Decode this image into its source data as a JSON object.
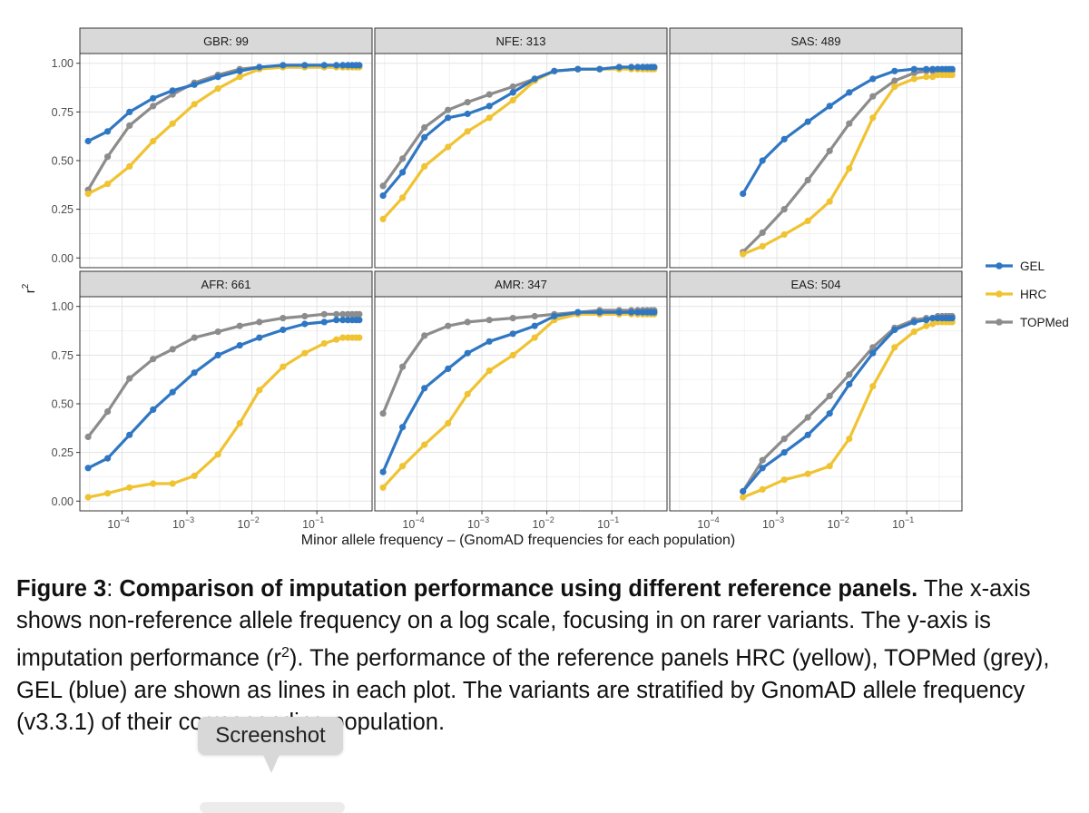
{
  "figure": {
    "y_axis_label": "r",
    "y_axis_label_sup": "2",
    "x_axis_label": "Minor allele frequency – (GnomAD frequencies for each population)",
    "y_ticks": [
      "0.00",
      "0.25",
      "0.50",
      "0.75",
      "1.00"
    ],
    "x_ticks": [
      {
        "base": "10",
        "exp": "−4",
        "value": -4
      },
      {
        "base": "10",
        "exp": "−3",
        "value": -3
      },
      {
        "base": "10",
        "exp": "−2",
        "value": -2
      },
      {
        "base": "10",
        "exp": "−1",
        "value": -1
      }
    ],
    "legend": [
      {
        "name": "GEL",
        "color": "#2f77c3"
      },
      {
        "name": "HRC",
        "color": "#f0c332"
      },
      {
        "name": "TOPMed",
        "color": "#8c8c8c"
      }
    ]
  },
  "chart_data": [
    {
      "type": "line",
      "title": "GBR: 99",
      "x_scale": "log10",
      "ylim": [
        0,
        1
      ],
      "xlabel": "Minor allele frequency – (GnomAD frequencies for each population)",
      "ylabel": "r2",
      "series": [
        {
          "name": "GEL",
          "x": [
            3e-05,
            6e-05,
            0.00013,
            0.0003,
            0.0006,
            0.0013,
            0.003,
            0.0065,
            0.013,
            0.03,
            0.065,
            0.13,
            0.2,
            0.25,
            0.3,
            0.35,
            0.4,
            0.45
          ],
          "y": [
            0.6,
            0.65,
            0.75,
            0.82,
            0.86,
            0.89,
            0.93,
            0.96,
            0.98,
            0.99,
            0.99,
            0.99,
            0.99,
            0.99,
            0.99,
            0.99,
            0.99,
            0.99
          ]
        },
        {
          "name": "HRC",
          "x": [
            3e-05,
            6e-05,
            0.00013,
            0.0003,
            0.0006,
            0.0013,
            0.003,
            0.0065,
            0.013,
            0.03,
            0.065,
            0.13,
            0.2,
            0.25,
            0.3,
            0.35,
            0.4,
            0.45
          ],
          "y": [
            0.33,
            0.38,
            0.47,
            0.6,
            0.69,
            0.79,
            0.87,
            0.93,
            0.97,
            0.98,
            0.98,
            0.98,
            0.98,
            0.98,
            0.98,
            0.98,
            0.98,
            0.98
          ]
        },
        {
          "name": "TOPMed",
          "x": [
            3e-05,
            6e-05,
            0.00013,
            0.0003,
            0.0006,
            0.0013,
            0.003,
            0.0065,
            0.013,
            0.03,
            0.065,
            0.13,
            0.2,
            0.25,
            0.3,
            0.35,
            0.4,
            0.45
          ],
          "y": [
            0.35,
            0.52,
            0.68,
            0.78,
            0.84,
            0.9,
            0.94,
            0.97,
            0.98,
            0.98,
            0.98,
            0.98,
            0.98,
            0.98,
            0.98,
            0.98,
            0.98,
            0.98
          ]
        }
      ]
    },
    {
      "type": "line",
      "title": "NFE: 313",
      "x_scale": "log10",
      "ylim": [
        0,
        1
      ],
      "series": [
        {
          "name": "GEL",
          "x": [
            3e-05,
            6e-05,
            0.00013,
            0.0003,
            0.0006,
            0.0013,
            0.003,
            0.0065,
            0.013,
            0.03,
            0.065,
            0.13,
            0.2,
            0.25,
            0.3,
            0.35,
            0.4,
            0.45
          ],
          "y": [
            0.32,
            0.44,
            0.62,
            0.72,
            0.74,
            0.78,
            0.85,
            0.92,
            0.96,
            0.97,
            0.97,
            0.98,
            0.98,
            0.98,
            0.98,
            0.98,
            0.98,
            0.98
          ]
        },
        {
          "name": "HRC",
          "x": [
            3e-05,
            6e-05,
            0.00013,
            0.0003,
            0.0006,
            0.0013,
            0.003,
            0.0065,
            0.013,
            0.03,
            0.065,
            0.13,
            0.2,
            0.25,
            0.3,
            0.35,
            0.4,
            0.45
          ],
          "y": [
            0.2,
            0.31,
            0.47,
            0.57,
            0.65,
            0.72,
            0.81,
            0.91,
            0.96,
            0.97,
            0.97,
            0.97,
            0.97,
            0.97,
            0.97,
            0.97,
            0.97,
            0.97
          ]
        },
        {
          "name": "TOPMed",
          "x": [
            3e-05,
            6e-05,
            0.00013,
            0.0003,
            0.0006,
            0.0013,
            0.003,
            0.0065,
            0.013,
            0.03,
            0.065,
            0.13,
            0.2,
            0.25,
            0.3,
            0.35,
            0.4,
            0.45
          ],
          "y": [
            0.37,
            0.51,
            0.67,
            0.76,
            0.8,
            0.84,
            0.88,
            0.92,
            0.96,
            0.97,
            0.97,
            0.98,
            0.98,
            0.98,
            0.98,
            0.98,
            0.98,
            0.98
          ]
        }
      ]
    },
    {
      "type": "line",
      "title": "SAS: 489",
      "x_scale": "log10",
      "ylim": [
        0,
        1
      ],
      "series": [
        {
          "name": "GEL",
          "x": [
            0.0003,
            0.0006,
            0.0013,
            0.003,
            0.0065,
            0.013,
            0.03,
            0.065,
            0.13,
            0.2,
            0.25,
            0.3,
            0.35,
            0.4,
            0.45,
            0.5
          ],
          "y": [
            0.33,
            0.5,
            0.61,
            0.7,
            0.78,
            0.85,
            0.92,
            0.96,
            0.97,
            0.97,
            0.97,
            0.97,
            0.97,
            0.97,
            0.97,
            0.97
          ]
        },
        {
          "name": "HRC",
          "x": [
            0.0003,
            0.0006,
            0.0013,
            0.003,
            0.0065,
            0.013,
            0.03,
            0.065,
            0.13,
            0.2,
            0.25,
            0.3,
            0.35,
            0.4,
            0.45,
            0.5
          ],
          "y": [
            0.02,
            0.06,
            0.12,
            0.19,
            0.29,
            0.46,
            0.72,
            0.88,
            0.92,
            0.93,
            0.93,
            0.94,
            0.94,
            0.94,
            0.94,
            0.94
          ]
        },
        {
          "name": "TOPMed",
          "x": [
            0.0003,
            0.0006,
            0.0013,
            0.003,
            0.0065,
            0.013,
            0.03,
            0.065,
            0.13,
            0.2,
            0.25,
            0.3,
            0.35,
            0.4,
            0.45,
            0.5
          ],
          "y": [
            0.03,
            0.13,
            0.25,
            0.4,
            0.55,
            0.69,
            0.83,
            0.91,
            0.95,
            0.96,
            0.96,
            0.96,
            0.96,
            0.96,
            0.96,
            0.96
          ]
        }
      ]
    },
    {
      "type": "line",
      "title": "AFR: 661",
      "x_scale": "log10",
      "ylim": [
        0,
        1
      ],
      "series": [
        {
          "name": "GEL",
          "x": [
            3e-05,
            6e-05,
            0.00013,
            0.0003,
            0.0006,
            0.0013,
            0.003,
            0.0065,
            0.013,
            0.03,
            0.065,
            0.13,
            0.2,
            0.25,
            0.3,
            0.35,
            0.4,
            0.45
          ],
          "y": [
            0.17,
            0.22,
            0.34,
            0.47,
            0.56,
            0.66,
            0.75,
            0.8,
            0.84,
            0.88,
            0.91,
            0.92,
            0.93,
            0.93,
            0.93,
            0.93,
            0.93,
            0.93
          ]
        },
        {
          "name": "HRC",
          "x": [
            3e-05,
            6e-05,
            0.00013,
            0.0003,
            0.0006,
            0.0013,
            0.003,
            0.0065,
            0.013,
            0.03,
            0.065,
            0.13,
            0.2,
            0.25,
            0.3,
            0.35,
            0.4,
            0.45
          ],
          "y": [
            0.02,
            0.04,
            0.07,
            0.09,
            0.09,
            0.13,
            0.24,
            0.4,
            0.57,
            0.69,
            0.76,
            0.81,
            0.83,
            0.84,
            0.84,
            0.84,
            0.84,
            0.84
          ]
        },
        {
          "name": "TOPMed",
          "x": [
            3e-05,
            6e-05,
            0.00013,
            0.0003,
            0.0006,
            0.0013,
            0.003,
            0.0065,
            0.013,
            0.03,
            0.065,
            0.13,
            0.2,
            0.25,
            0.3,
            0.35,
            0.4,
            0.45
          ],
          "y": [
            0.33,
            0.46,
            0.63,
            0.73,
            0.78,
            0.84,
            0.87,
            0.9,
            0.92,
            0.94,
            0.95,
            0.96,
            0.96,
            0.96,
            0.96,
            0.96,
            0.96,
            0.96
          ]
        }
      ]
    },
    {
      "type": "line",
      "title": "AMR: 347",
      "x_scale": "log10",
      "ylim": [
        0,
        1
      ],
      "series": [
        {
          "name": "GEL",
          "x": [
            3e-05,
            6e-05,
            0.00013,
            0.0003,
            0.0006,
            0.0013,
            0.003,
            0.0065,
            0.013,
            0.03,
            0.065,
            0.13,
            0.2,
            0.25,
            0.3,
            0.35,
            0.4,
            0.45
          ],
          "y": [
            0.15,
            0.38,
            0.58,
            0.68,
            0.76,
            0.82,
            0.86,
            0.9,
            0.95,
            0.97,
            0.97,
            0.97,
            0.97,
            0.97,
            0.97,
            0.97,
            0.97,
            0.97
          ]
        },
        {
          "name": "HRC",
          "x": [
            3e-05,
            6e-05,
            0.00013,
            0.0003,
            0.0006,
            0.0013,
            0.003,
            0.0065,
            0.013,
            0.03,
            0.065,
            0.13,
            0.2,
            0.25,
            0.3,
            0.35,
            0.4,
            0.45
          ],
          "y": [
            0.07,
            0.18,
            0.29,
            0.4,
            0.55,
            0.67,
            0.75,
            0.84,
            0.93,
            0.96,
            0.96,
            0.96,
            0.96,
            0.96,
            0.96,
            0.96,
            0.96,
            0.96
          ]
        },
        {
          "name": "TOPMed",
          "x": [
            3e-05,
            6e-05,
            0.00013,
            0.0003,
            0.0006,
            0.0013,
            0.003,
            0.0065,
            0.013,
            0.03,
            0.065,
            0.13,
            0.2,
            0.25,
            0.3,
            0.35,
            0.4,
            0.45
          ],
          "y": [
            0.45,
            0.69,
            0.85,
            0.9,
            0.92,
            0.93,
            0.94,
            0.95,
            0.96,
            0.97,
            0.98,
            0.98,
            0.98,
            0.98,
            0.98,
            0.98,
            0.98,
            0.98
          ]
        }
      ]
    },
    {
      "type": "line",
      "title": "EAS: 504",
      "x_scale": "log10",
      "ylim": [
        0,
        1
      ],
      "series": [
        {
          "name": "GEL",
          "x": [
            0.0003,
            0.0006,
            0.0013,
            0.003,
            0.0065,
            0.013,
            0.03,
            0.065,
            0.13,
            0.2,
            0.25,
            0.3,
            0.35,
            0.4,
            0.45,
            0.5
          ],
          "y": [
            0.05,
            0.17,
            0.25,
            0.34,
            0.45,
            0.6,
            0.76,
            0.88,
            0.92,
            0.93,
            0.94,
            0.94,
            0.94,
            0.94,
            0.94,
            0.94
          ]
        },
        {
          "name": "HRC",
          "x": [
            0.0003,
            0.0006,
            0.0013,
            0.003,
            0.0065,
            0.013,
            0.03,
            0.065,
            0.13,
            0.2,
            0.25,
            0.3,
            0.35,
            0.4,
            0.45,
            0.5
          ],
          "y": [
            0.02,
            0.06,
            0.11,
            0.14,
            0.18,
            0.32,
            0.59,
            0.79,
            0.87,
            0.9,
            0.91,
            0.92,
            0.92,
            0.92,
            0.92,
            0.92
          ]
        },
        {
          "name": "TOPMed",
          "x": [
            0.0003,
            0.0006,
            0.0013,
            0.003,
            0.0065,
            0.013,
            0.03,
            0.065,
            0.13,
            0.2,
            0.25,
            0.3,
            0.35,
            0.4,
            0.45,
            0.5
          ],
          "y": [
            0.05,
            0.21,
            0.32,
            0.43,
            0.54,
            0.65,
            0.79,
            0.89,
            0.93,
            0.94,
            0.94,
            0.95,
            0.95,
            0.95,
            0.95,
            0.95
          ]
        }
      ]
    }
  ],
  "caption": {
    "label": "Figure 3",
    "colon": ": ",
    "title": "Comparison of imputation performance using different reference panels.",
    "body": " The x-axis shows non-reference allele frequency on a log scale, focusing in on rarer variants. The y-axis is imputation performance (r",
    "body_sup": "2",
    "body_rest": "). The performance of the reference panels HRC (yellow), TOPMed (grey), GEL (blue) are shown as lines in each plot. The variants are stratified by GnomAD allele frequency (v3.3.1) of their corresponding population."
  },
  "tooltip": {
    "label": "Screenshot"
  }
}
